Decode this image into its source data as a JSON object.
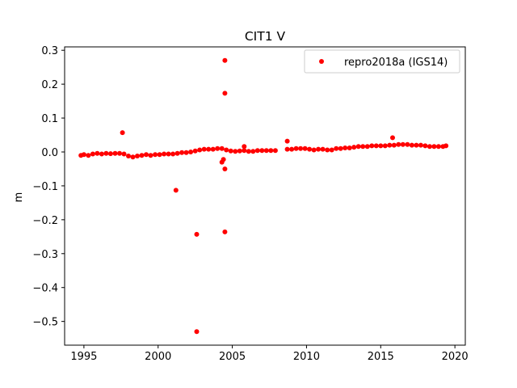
{
  "chart_data": {
    "type": "scatter",
    "title": "CIT1 V",
    "xlabel": "",
    "ylabel": "m",
    "xlim": [
      1993.7,
      2020.7
    ],
    "ylim": [
      -0.57,
      0.31
    ],
    "xticks": [
      1995,
      2000,
      2005,
      2010,
      2015,
      2020
    ],
    "xtick_labels": [
      "1995",
      "2000",
      "2005",
      "2010",
      "2015",
      "2020"
    ],
    "yticks": [
      0.3,
      0.2,
      0.1,
      0.0,
      -0.1,
      -0.2,
      -0.3,
      -0.4,
      -0.5
    ],
    "ytick_labels": [
      "0.3",
      "0.2",
      "0.1",
      "0.0",
      "−0.1",
      "−0.2",
      "−0.3",
      "−0.4",
      "−0.5"
    ],
    "grid": false,
    "legend_position": "upper right",
    "series": [
      {
        "name": "repro2018a (IGS14)",
        "color": "#ff0000",
        "marker": "circle",
        "x": [
          1994.8,
          1995.0,
          1995.3,
          1995.6,
          1995.9,
          1996.2,
          1996.5,
          1996.8,
          1997.1,
          1997.4,
          1997.7,
          1998.0,
          1998.3,
          1998.6,
          1998.9,
          1999.2,
          1999.5,
          1999.8,
          2000.1,
          2000.4,
          2000.7,
          2001.0,
          2001.3,
          2001.6,
          2001.9,
          2002.2,
          2002.5,
          2002.8,
          2003.1,
          2003.4,
          2003.7,
          2004.0,
          2004.3,
          2004.6,
          2004.9,
          2005.2,
          2005.5,
          2005.8,
          2006.1,
          2006.4,
          2006.7,
          2007.0,
          2007.3,
          2007.6,
          2007.9,
          2008.7,
          2009.0,
          2009.3,
          2009.6,
          2009.9,
          2010.2,
          2010.5,
          2010.8,
          2011.1,
          2011.4,
          2011.7,
          2012.0,
          2012.3,
          2012.6,
          2012.9,
          2013.2,
          2013.5,
          2013.8,
          2014.1,
          2014.4,
          2014.7,
          2015.0,
          2015.3,
          2015.6,
          2015.9,
          2016.2,
          2016.5,
          2016.8,
          2017.1,
          2017.4,
          2017.7,
          2018.0,
          2018.3,
          2018.6,
          2018.9,
          2019.2,
          2019.4,
          1997.6,
          2001.2,
          2002.6,
          2002.6,
          2004.5,
          2004.5,
          2004.5,
          2004.5,
          2004.4,
          2004.3,
          2005.8,
          2008.7,
          2015.8
        ],
        "y": [
          -0.01,
          -0.008,
          -0.01,
          -0.006,
          -0.004,
          -0.006,
          -0.004,
          -0.005,
          -0.004,
          -0.004,
          -0.006,
          -0.012,
          -0.015,
          -0.012,
          -0.01,
          -0.008,
          -0.01,
          -0.008,
          -0.008,
          -0.006,
          -0.006,
          -0.006,
          -0.004,
          -0.002,
          -0.002,
          0.0,
          0.003,
          0.006,
          0.008,
          0.008,
          0.008,
          0.01,
          0.01,
          0.006,
          0.003,
          0.002,
          0.003,
          0.004,
          0.002,
          0.002,
          0.004,
          0.004,
          0.004,
          0.004,
          0.004,
          0.008,
          0.008,
          0.01,
          0.01,
          0.01,
          0.008,
          0.006,
          0.008,
          0.008,
          0.006,
          0.006,
          0.01,
          0.01,
          0.012,
          0.012,
          0.014,
          0.016,
          0.016,
          0.016,
          0.018,
          0.018,
          0.018,
          0.018,
          0.02,
          0.02,
          0.022,
          0.022,
          0.022,
          0.02,
          0.02,
          0.02,
          0.018,
          0.016,
          0.016,
          0.016,
          0.016,
          0.018,
          0.057,
          -0.113,
          -0.243,
          -0.53,
          0.27,
          0.173,
          -0.236,
          -0.05,
          -0.022,
          -0.03,
          0.016,
          0.032,
          0.042
        ]
      }
    ]
  }
}
